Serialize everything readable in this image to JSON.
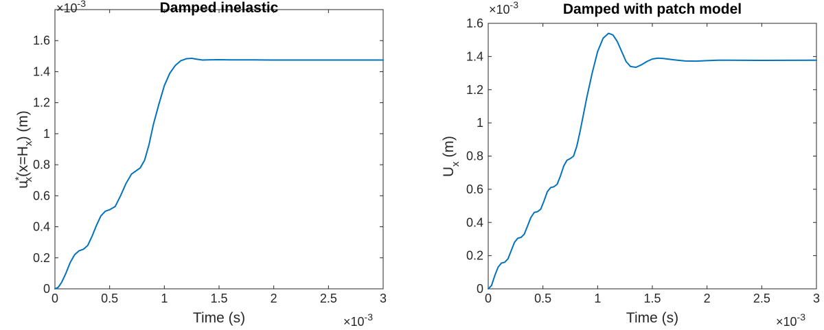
{
  "chart_data": [
    {
      "type": "line",
      "title": "Damped inelastic",
      "xlabel": "Time (s)",
      "ylabel_parts": {
        "base": "u",
        "sup": "*",
        "sub": "x",
        "mid": "(x=H",
        "sub2": "x",
        "end": ") (m)"
      },
      "x_exponent": {
        "base": "×10",
        "power": "-3"
      },
      "y_exponent": {
        "base": "×10",
        "power": "-3"
      },
      "xlim": [
        0,
        3
      ],
      "ylim": [
        0,
        1.8
      ],
      "xticks": [
        0,
        0.5,
        1,
        1.5,
        2,
        2.5,
        3
      ],
      "xtick_labels": [
        "0",
        "0.5",
        "1",
        "1.5",
        "2",
        "2.5",
        "3"
      ],
      "yticks": [
        0,
        0.2,
        0.4,
        0.6,
        0.8,
        1,
        1.2,
        1.4,
        1.6
      ],
      "ytick_labels": [
        "0",
        "0.2",
        "0.4",
        "0.6",
        "0.8",
        "1",
        "1.2",
        "1.4",
        "1.6"
      ],
      "grid": false,
      "line_color": "#0072bd",
      "series": [
        {
          "x": [
            0,
            0.03,
            0.06,
            0.1,
            0.14,
            0.18,
            0.22,
            0.26,
            0.3,
            0.34,
            0.38,
            0.42,
            0.46,
            0.5,
            0.55,
            0.6,
            0.65,
            0.7,
            0.74,
            0.78,
            0.82,
            0.86,
            0.9,
            0.95,
            1.0,
            1.05,
            1.1,
            1.15,
            1.2,
            1.25,
            1.3,
            1.35,
            1.4,
            1.5,
            1.6,
            1.8,
            2.0,
            2.5,
            3.0
          ],
          "y": [
            0,
            0.01,
            0.04,
            0.1,
            0.17,
            0.22,
            0.245,
            0.255,
            0.28,
            0.34,
            0.41,
            0.47,
            0.5,
            0.51,
            0.53,
            0.6,
            0.68,
            0.74,
            0.76,
            0.78,
            0.83,
            0.93,
            1.06,
            1.19,
            1.31,
            1.39,
            1.44,
            1.47,
            1.483,
            1.486,
            1.48,
            1.475,
            1.476,
            1.477,
            1.476,
            1.476,
            1.475,
            1.475,
            1.475
          ]
        }
      ]
    },
    {
      "type": "line",
      "title": "Damped with patch model",
      "xlabel": "Time (s)",
      "ylabel_parts": {
        "base": "U",
        "sub": "x",
        "end": " (m)"
      },
      "x_exponent": {
        "base": "×10",
        "power": "-3"
      },
      "y_exponent": {
        "base": "×10",
        "power": "-3"
      },
      "xlim": [
        0,
        3
      ],
      "ylim": [
        0,
        1.6
      ],
      "xticks": [
        0,
        0.5,
        1,
        1.5,
        2,
        2.5,
        3
      ],
      "xtick_labels": [
        "0",
        "0.5",
        "1",
        "1.5",
        "2",
        "2.5",
        "3"
      ],
      "yticks": [
        0,
        0.2,
        0.4,
        0.6,
        0.8,
        1,
        1.2,
        1.4,
        1.6
      ],
      "ytick_labels": [
        "0",
        "0.2",
        "0.4",
        "0.6",
        "0.8",
        "1",
        "1.2",
        "1.4",
        "1.6"
      ],
      "grid": false,
      "line_color": "#0072bd",
      "series": [
        {
          "x": [
            0,
            0.03,
            0.06,
            0.09,
            0.12,
            0.15,
            0.18,
            0.21,
            0.24,
            0.27,
            0.3,
            0.33,
            0.36,
            0.39,
            0.42,
            0.45,
            0.48,
            0.51,
            0.54,
            0.57,
            0.6,
            0.63,
            0.66,
            0.69,
            0.72,
            0.75,
            0.78,
            0.81,
            0.84,
            0.87,
            0.9,
            0.95,
            1.0,
            1.05,
            1.1,
            1.14,
            1.18,
            1.22,
            1.26,
            1.3,
            1.35,
            1.4,
            1.45,
            1.5,
            1.55,
            1.6,
            1.7,
            1.8,
            1.9,
            2.0,
            2.1,
            2.2,
            2.5,
            3.0
          ],
          "y": [
            0,
            0.02,
            0.08,
            0.13,
            0.155,
            0.16,
            0.18,
            0.23,
            0.28,
            0.305,
            0.31,
            0.33,
            0.38,
            0.43,
            0.46,
            0.465,
            0.48,
            0.53,
            0.585,
            0.61,
            0.615,
            0.63,
            0.68,
            0.74,
            0.775,
            0.785,
            0.8,
            0.86,
            0.95,
            1.05,
            1.15,
            1.3,
            1.43,
            1.51,
            1.54,
            1.53,
            1.49,
            1.43,
            1.37,
            1.34,
            1.335,
            1.35,
            1.37,
            1.385,
            1.39,
            1.388,
            1.38,
            1.373,
            1.372,
            1.375,
            1.378,
            1.378,
            1.377,
            1.378
          ]
        }
      ]
    }
  ]
}
